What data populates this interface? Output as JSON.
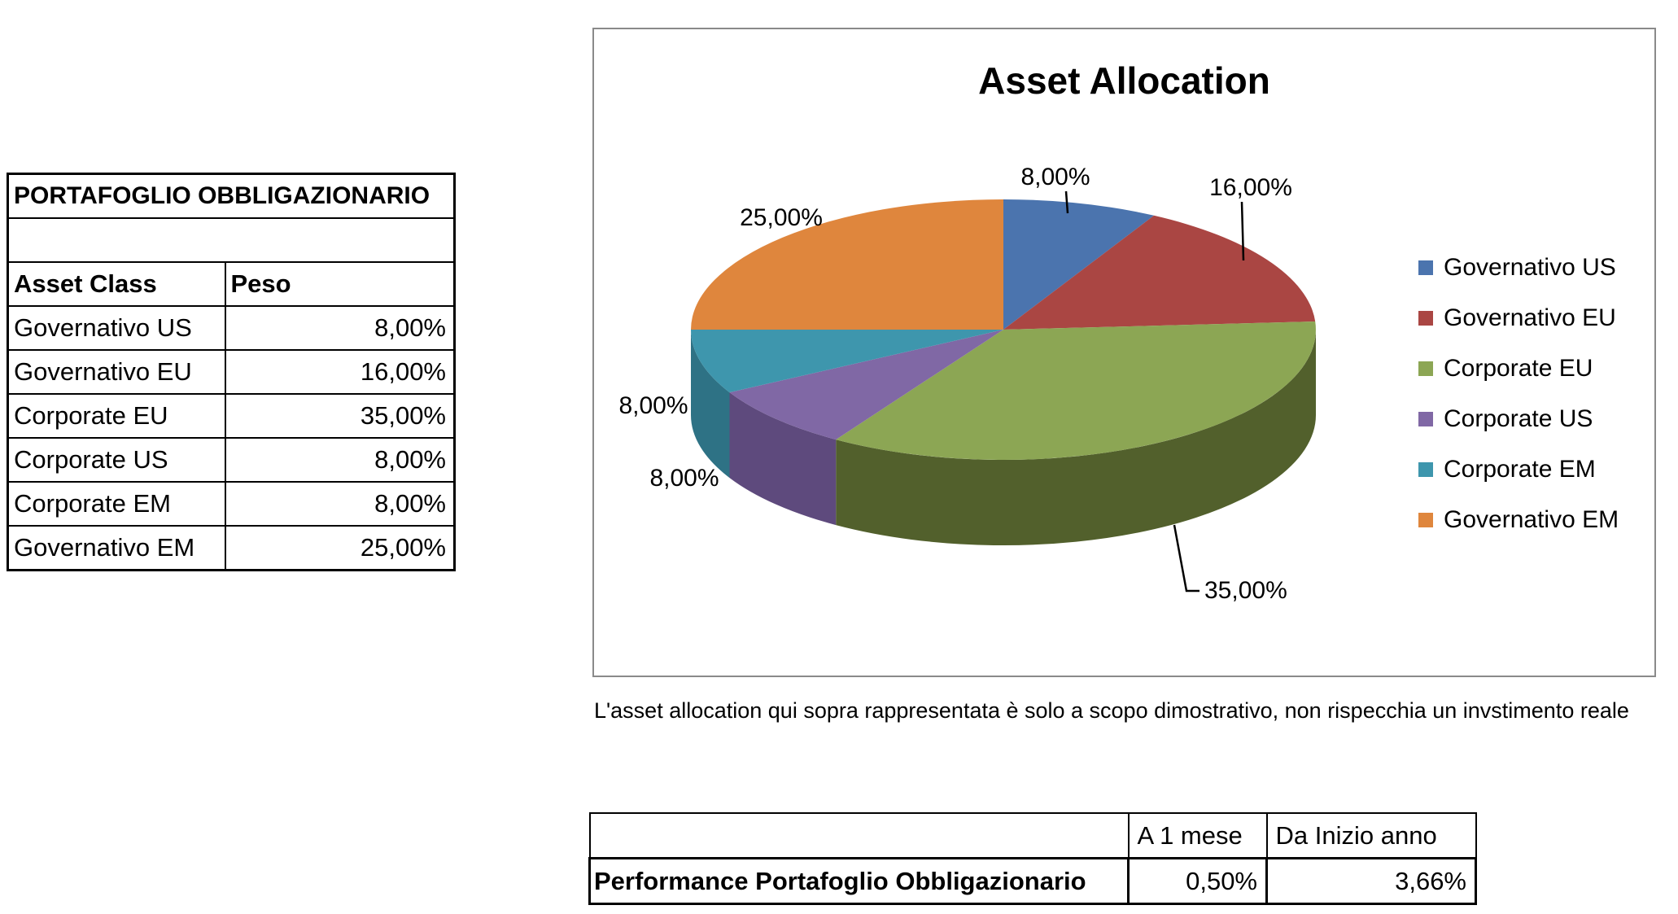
{
  "portfolio_table": {
    "title": "PORTAFOGLIO OBBLIGAZIONARIO",
    "columns": [
      "Asset Class",
      "Peso"
    ],
    "rows": [
      {
        "asset_class": "Governativo US",
        "peso": "8,00%"
      },
      {
        "asset_class": "Governativo EU",
        "peso": "16,00%"
      },
      {
        "asset_class": "Corporate EU",
        "peso": "35,00%"
      },
      {
        "asset_class": "Corporate US",
        "peso": "8,00%"
      },
      {
        "asset_class": "Corporate EM",
        "peso": "8,00%"
      },
      {
        "asset_class": "Governativo EM",
        "peso": "25,00%"
      }
    ]
  },
  "chart_data": {
    "type": "pie",
    "style": "3d",
    "title": "Asset Allocation",
    "labels": [
      "Governativo US",
      "Governativo EU",
      "Corporate EU",
      "Corporate US",
      "Corporate EM",
      "Governativo EM"
    ],
    "values": [
      8,
      16,
      35,
      8,
      8,
      25
    ],
    "display_values": [
      "8,00%",
      "16,00%",
      "35,00%",
      "8,00%",
      "8,00%",
      "25,00%"
    ],
    "colors": [
      "#4B74AE",
      "#AA4643",
      "#8CA654",
      "#8068A5",
      "#3E96AD",
      "#DF863D"
    ],
    "side_colors": [
      "#2F4A74",
      "#71302E",
      "#52602C",
      "#5E4A7D",
      "#2E7285",
      "#9C5A26"
    ],
    "legend_position": "right",
    "start_angle_deg": 0,
    "direction": "clockwise"
  },
  "disclaimer": "L'asset allocation qui sopra rappresentata è solo a scopo dimostrativo, non rispecchia un invstimento reale",
  "performance_table": {
    "columns": [
      "A 1 mese",
      "Da Inizio anno"
    ],
    "row_label": "Performance Portafoglio Obbligazionario",
    "values": [
      "0,50%",
      "3,66%"
    ]
  }
}
